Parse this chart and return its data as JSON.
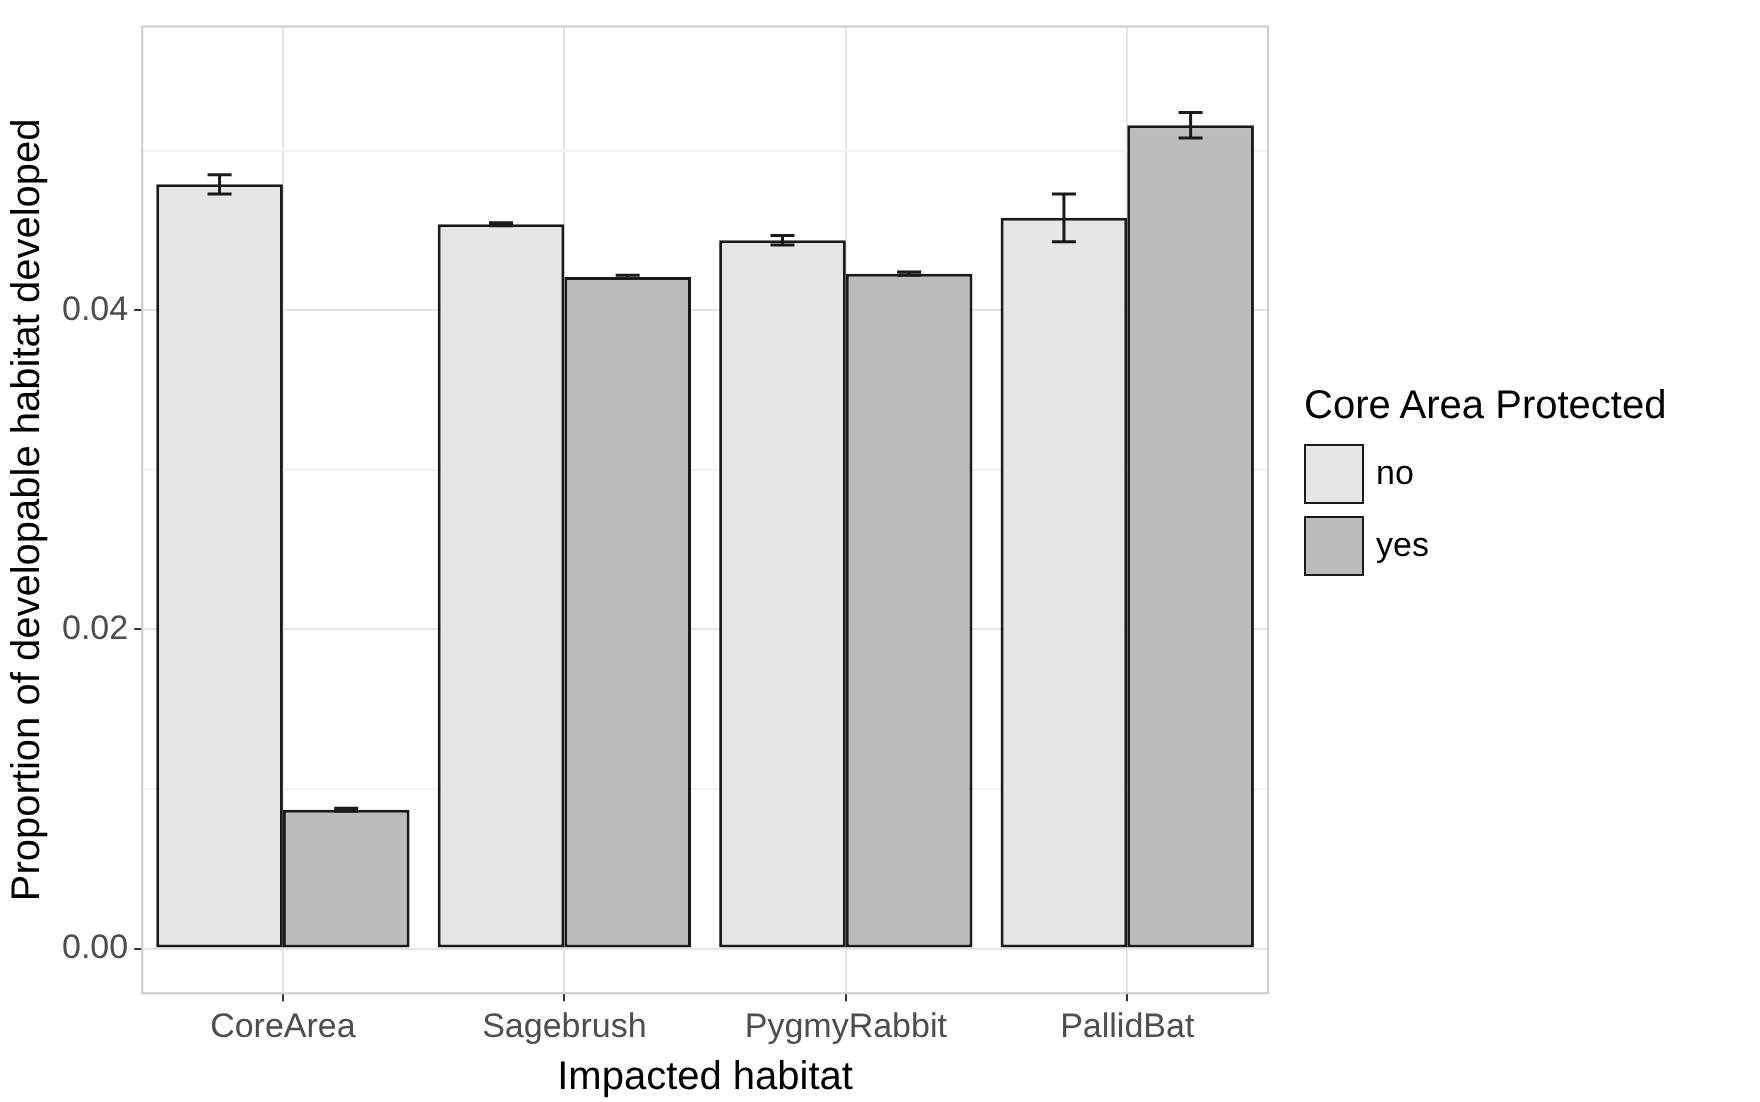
{
  "chart_data": {
    "type": "bar",
    "xlabel": "Impacted habitat",
    "ylabel": "Proportion of developable habitat developed",
    "legend_title": "Core Area Protected",
    "legend": "right",
    "categories": [
      "CoreArea",
      "Sagebrush",
      "PygmyRabbit",
      "PallidBat"
    ],
    "series": [
      {
        "name": "no",
        "color": "#e6e6e6",
        "values": [
          0.0479,
          0.0454,
          0.0444,
          0.0458
        ],
        "errors": [
          0.0006,
          0.0001,
          0.0003,
          0.0015
        ]
      },
      {
        "name": "yes",
        "color": "#bcbcbc",
        "values": [
          0.0087,
          0.0421,
          0.0423,
          0.0516
        ],
        "errors": [
          0.0001,
          0.0001,
          0.0001,
          0.0008
        ]
      }
    ],
    "ylim": [
      -0.0028,
      0.0578
    ],
    "yticks": [
      {
        "value": 0,
        "label": "0.00"
      },
      {
        "value": 0.01,
        "label": null
      },
      {
        "value": 0.02,
        "label": "0.02"
      },
      {
        "value": 0.03,
        "label": null
      },
      {
        "value": 0.04,
        "label": "0.04"
      },
      {
        "value": 0.05,
        "label": null
      }
    ],
    "grid": true
  }
}
